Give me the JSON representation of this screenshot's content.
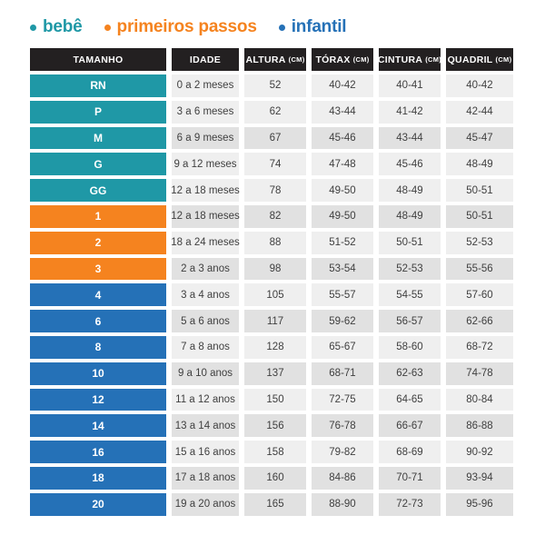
{
  "legend": {
    "items": [
      {
        "label": "bebê",
        "color_key": "bebe"
      },
      {
        "label": "primeiros passos",
        "color_key": "primeiros_passos"
      },
      {
        "label": "infantil",
        "color_key": "infantil"
      }
    ]
  },
  "colors": {
    "bebe": "#1f98a6",
    "primeiros_passos": "#f5831f",
    "infantil": "#2571b7",
    "header_bg": "#232021",
    "header_text": "#ffffff",
    "row_light": "#efefef",
    "row_dark": "#e1e1e1",
    "cell_text": "#3f3f3f",
    "size_text": "#ffffff",
    "background": "#ffffff"
  },
  "table": {
    "headers": [
      {
        "label": "TAMANHO",
        "unit": ""
      },
      {
        "label": "IDADE",
        "unit": ""
      },
      {
        "label": "ALTURA",
        "unit": "(CM)"
      },
      {
        "label": "TÓRAX",
        "unit": "(CM)"
      },
      {
        "label": "CINTURA",
        "unit": "(CM)"
      },
      {
        "label": "QUADRIL",
        "unit": "(CM)"
      }
    ]
  },
  "chart_data": {
    "type": "table",
    "columns": [
      "TAMANHO",
      "IDADE",
      "ALTURA (CM)",
      "TÓRAX (CM)",
      "CINTURA (CM)",
      "QUADRIL (CM)"
    ],
    "rows": [
      {
        "size": "RN",
        "group": "bebe",
        "age": "0 a 2 meses",
        "height": "52",
        "chest": "40-42",
        "waist": "40-41",
        "hip": "40-42",
        "shade": "light"
      },
      {
        "size": "P",
        "group": "bebe",
        "age": "3 a 6 meses",
        "height": "62",
        "chest": "43-44",
        "waist": "41-42",
        "hip": "42-44",
        "shade": "light"
      },
      {
        "size": "M",
        "group": "bebe",
        "age": "6 a 9 meses",
        "height": "67",
        "chest": "45-46",
        "waist": "43-44",
        "hip": "45-47",
        "shade": "dark"
      },
      {
        "size": "G",
        "group": "bebe",
        "age": "9 a 12 meses",
        "height": "74",
        "chest": "47-48",
        "waist": "45-46",
        "hip": "48-49",
        "shade": "light"
      },
      {
        "size": "GG",
        "group": "bebe",
        "age": "12 a 18 meses",
        "height": "78",
        "chest": "49-50",
        "waist": "48-49",
        "hip": "50-51",
        "shade": "light"
      },
      {
        "size": "1",
        "group": "primeiros_passos",
        "age": "12 a 18 meses",
        "height": "82",
        "chest": "49-50",
        "waist": "48-49",
        "hip": "50-51",
        "shade": "dark"
      },
      {
        "size": "2",
        "group": "primeiros_passos",
        "age": "18 a 24 meses",
        "height": "88",
        "chest": "51-52",
        "waist": "50-51",
        "hip": "52-53",
        "shade": "light"
      },
      {
        "size": "3",
        "group": "primeiros_passos",
        "age": "2 a 3 anos",
        "height": "98",
        "chest": "53-54",
        "waist": "52-53",
        "hip": "55-56",
        "shade": "dark"
      },
      {
        "size": "4",
        "group": "infantil",
        "age": "3 a 4 anos",
        "height": "105",
        "chest": "55-57",
        "waist": "54-55",
        "hip": "57-60",
        "shade": "light"
      },
      {
        "size": "6",
        "group": "infantil",
        "age": "5 a 6 anos",
        "height": "117",
        "chest": "59-62",
        "waist": "56-57",
        "hip": "62-66",
        "shade": "dark"
      },
      {
        "size": "8",
        "group": "infantil",
        "age": "7 a 8 anos",
        "height": "128",
        "chest": "65-67",
        "waist": "58-60",
        "hip": "68-72",
        "shade": "light"
      },
      {
        "size": "10",
        "group": "infantil",
        "age": "9 a 10 anos",
        "height": "137",
        "chest": "68-71",
        "waist": "62-63",
        "hip": "74-78",
        "shade": "dark"
      },
      {
        "size": "12",
        "group": "infantil",
        "age": "11 a 12 anos",
        "height": "150",
        "chest": "72-75",
        "waist": "64-65",
        "hip": "80-84",
        "shade": "light"
      },
      {
        "size": "14",
        "group": "infantil",
        "age": "13 a 14 anos",
        "height": "156",
        "chest": "76-78",
        "waist": "66-67",
        "hip": "86-88",
        "shade": "dark"
      },
      {
        "size": "16",
        "group": "infantil",
        "age": "15 a 16 anos",
        "height": "158",
        "chest": "79-82",
        "waist": "68-69",
        "hip": "90-92",
        "shade": "light"
      },
      {
        "size": "18",
        "group": "infantil",
        "age": "17 a 18 anos",
        "height": "160",
        "chest": "84-86",
        "waist": "70-71",
        "hip": "93-94",
        "shade": "dark"
      },
      {
        "size": "20",
        "group": "infantil",
        "age": "19 a 20 anos",
        "height": "165",
        "chest": "88-90",
        "waist": "72-73",
        "hip": "95-96",
        "shade": "dark"
      }
    ]
  }
}
